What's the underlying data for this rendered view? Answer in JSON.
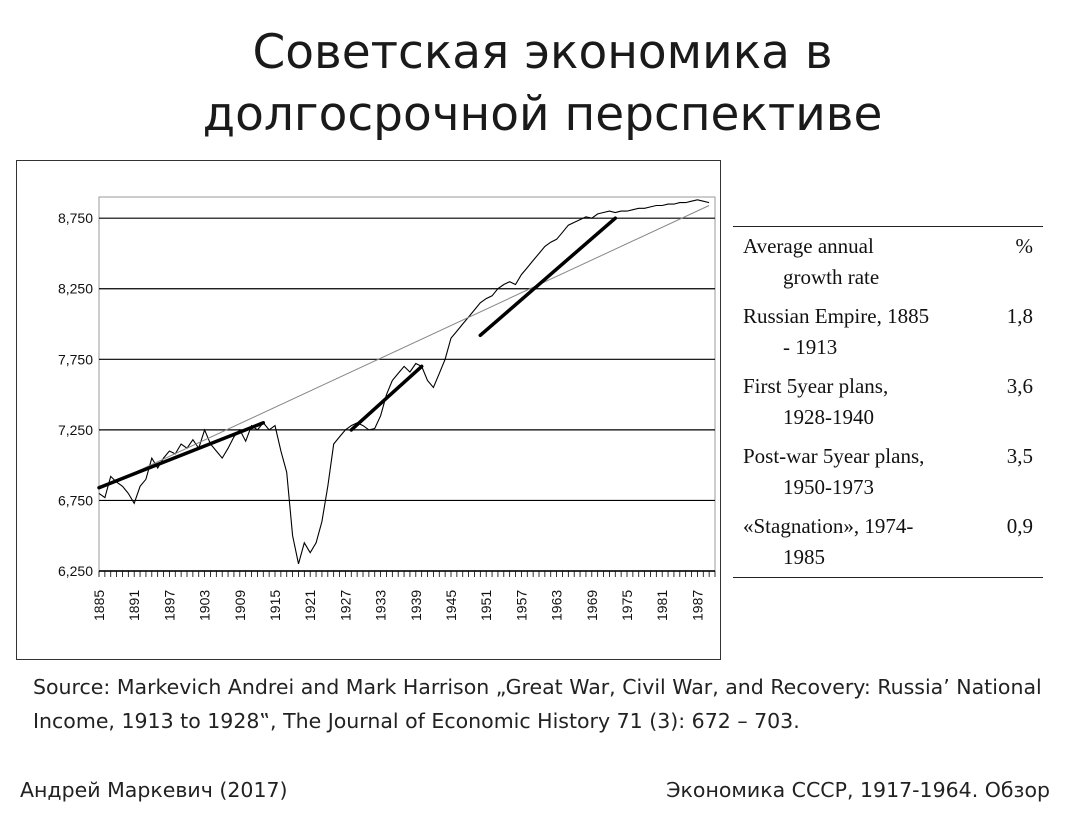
{
  "slide": {
    "title_line1": "Советская экономика в",
    "title_line2": "долгосрочной перспективе"
  },
  "chart_data": {
    "type": "line",
    "title": "",
    "xlabel": "",
    "ylabel": "",
    "xlim": [
      1885,
      1990
    ],
    "ylim": [
      6.25,
      8.9
    ],
    "y_ticks": [
      6.25,
      6.75,
      7.25,
      7.75,
      8.25,
      8.75
    ],
    "y_tick_labels": [
      "6,250",
      "6,750",
      "7,250",
      "7,750",
      "8,250",
      "8,750"
    ],
    "x_tick_labels": [
      "1885",
      "1891",
      "1897",
      "1903",
      "1909",
      "1915",
      "1921",
      "1927",
      "1933",
      "1939",
      "1945",
      "1951",
      "1957",
      "1963",
      "1969",
      "1975",
      "1981",
      "1987"
    ],
    "grid": "horizontal",
    "series": [
      {
        "name": "",
        "style": "thin-black",
        "x": [
          1885,
          1886,
          1887,
          1888,
          1889,
          1890,
          1891,
          1892,
          1893,
          1894,
          1895,
          1896,
          1897,
          1898,
          1899,
          1900,
          1901,
          1902,
          1903,
          1904,
          1905,
          1906,
          1907,
          1908,
          1909,
          1910,
          1911,
          1912,
          1913,
          1914,
          1915,
          1916,
          1917,
          1918,
          1919,
          1920,
          1921,
          1922,
          1923,
          1924,
          1925,
          1926,
          1927,
          1928,
          1929,
          1930,
          1931,
          1932,
          1933,
          1934,
          1935,
          1936,
          1937,
          1938,
          1939,
          1940,
          1941,
          1942,
          1943,
          1944,
          1945,
          1946,
          1947,
          1948,
          1949,
          1950,
          1951,
          1952,
          1953,
          1954,
          1955,
          1956,
          1957,
          1958,
          1959,
          1960,
          1961,
          1962,
          1963,
          1964,
          1965,
          1966,
          1967,
          1968,
          1969,
          1970,
          1971,
          1972,
          1973,
          1974,
          1975,
          1976,
          1977,
          1978,
          1979,
          1980,
          1981,
          1982,
          1983,
          1984,
          1985,
          1986,
          1987,
          1988,
          1989
        ],
        "values": [
          6.8,
          6.77,
          6.92,
          6.88,
          6.85,
          6.8,
          6.73,
          6.85,
          6.9,
          7.05,
          6.98,
          7.05,
          7.1,
          7.08,
          7.15,
          7.12,
          7.18,
          7.12,
          7.25,
          7.15,
          7.1,
          7.05,
          7.12,
          7.2,
          7.25,
          7.17,
          7.28,
          7.25,
          7.3,
          7.25,
          7.28,
          7.1,
          6.95,
          6.5,
          6.3,
          6.45,
          6.38,
          6.45,
          6.6,
          6.85,
          7.15,
          7.2,
          7.25,
          7.28,
          7.3,
          7.28,
          7.25,
          7.26,
          7.35,
          7.5,
          7.6,
          7.65,
          7.7,
          7.66,
          7.72,
          7.7,
          7.6,
          7.55,
          7.65,
          7.75,
          7.9,
          7.95,
          8.0,
          8.05,
          8.1,
          8.15,
          8.18,
          8.2,
          8.25,
          8.28,
          8.3,
          8.28,
          8.35,
          8.4,
          8.45,
          8.5,
          8.55,
          8.58,
          8.6,
          8.65,
          8.7,
          8.72,
          8.74,
          8.76,
          8.75,
          8.78,
          8.79,
          8.8,
          8.79,
          8.8,
          8.8,
          8.81,
          8.82,
          8.82,
          8.83,
          8.84,
          8.84,
          8.85,
          8.85,
          8.86,
          8.86,
          8.87,
          8.88,
          8.87,
          8.86
        ]
      },
      {
        "name": "",
        "style": "thin-gray-trend",
        "x": [
          1885,
          1989
        ],
        "values": [
          6.83,
          8.84
        ]
      },
      {
        "name": "",
        "style": "thick-segment",
        "x": [
          1885,
          1913
        ],
        "values": [
          6.84,
          7.3
        ]
      },
      {
        "name": "",
        "style": "thick-segment",
        "x": [
          1928,
          1940
        ],
        "values": [
          7.25,
          7.7
        ]
      },
      {
        "name": "",
        "style": "thick-segment",
        "x": [
          1950,
          1973
        ],
        "values": [
          7.92,
          8.75
        ]
      }
    ]
  },
  "growth_table": {
    "header": {
      "label_line1": "Average annual",
      "label_line2": "growth rate",
      "pct": "%"
    },
    "rows": [
      {
        "label_line1": "Russian Empire, 1885",
        "label_line2": "- 1913",
        "pct": "1,8"
      },
      {
        "label_line1": "First 5year plans,",
        "label_line2": "1928-1940",
        "pct": "3,6"
      },
      {
        "label_line1": "Post-war 5year plans,",
        "label_line2": "1950-1973",
        "pct": "3,5"
      },
      {
        "label_line1": "«Stagnation», 1974-",
        "label_line2": "1985",
        "pct": "0,9"
      }
    ]
  },
  "source": {
    "text": "Source: Markevich Andrei and Mark Harrison „Great War, Civil War, and Recovery: Russia’ National Income, 1913 to 1928‟, The Journal of Economic History 71 (3): 672 – 703."
  },
  "footer": {
    "left": "Андрей Маркевич (2017)",
    "right": "Экономика СССР, 1917-1964. Обзор"
  }
}
